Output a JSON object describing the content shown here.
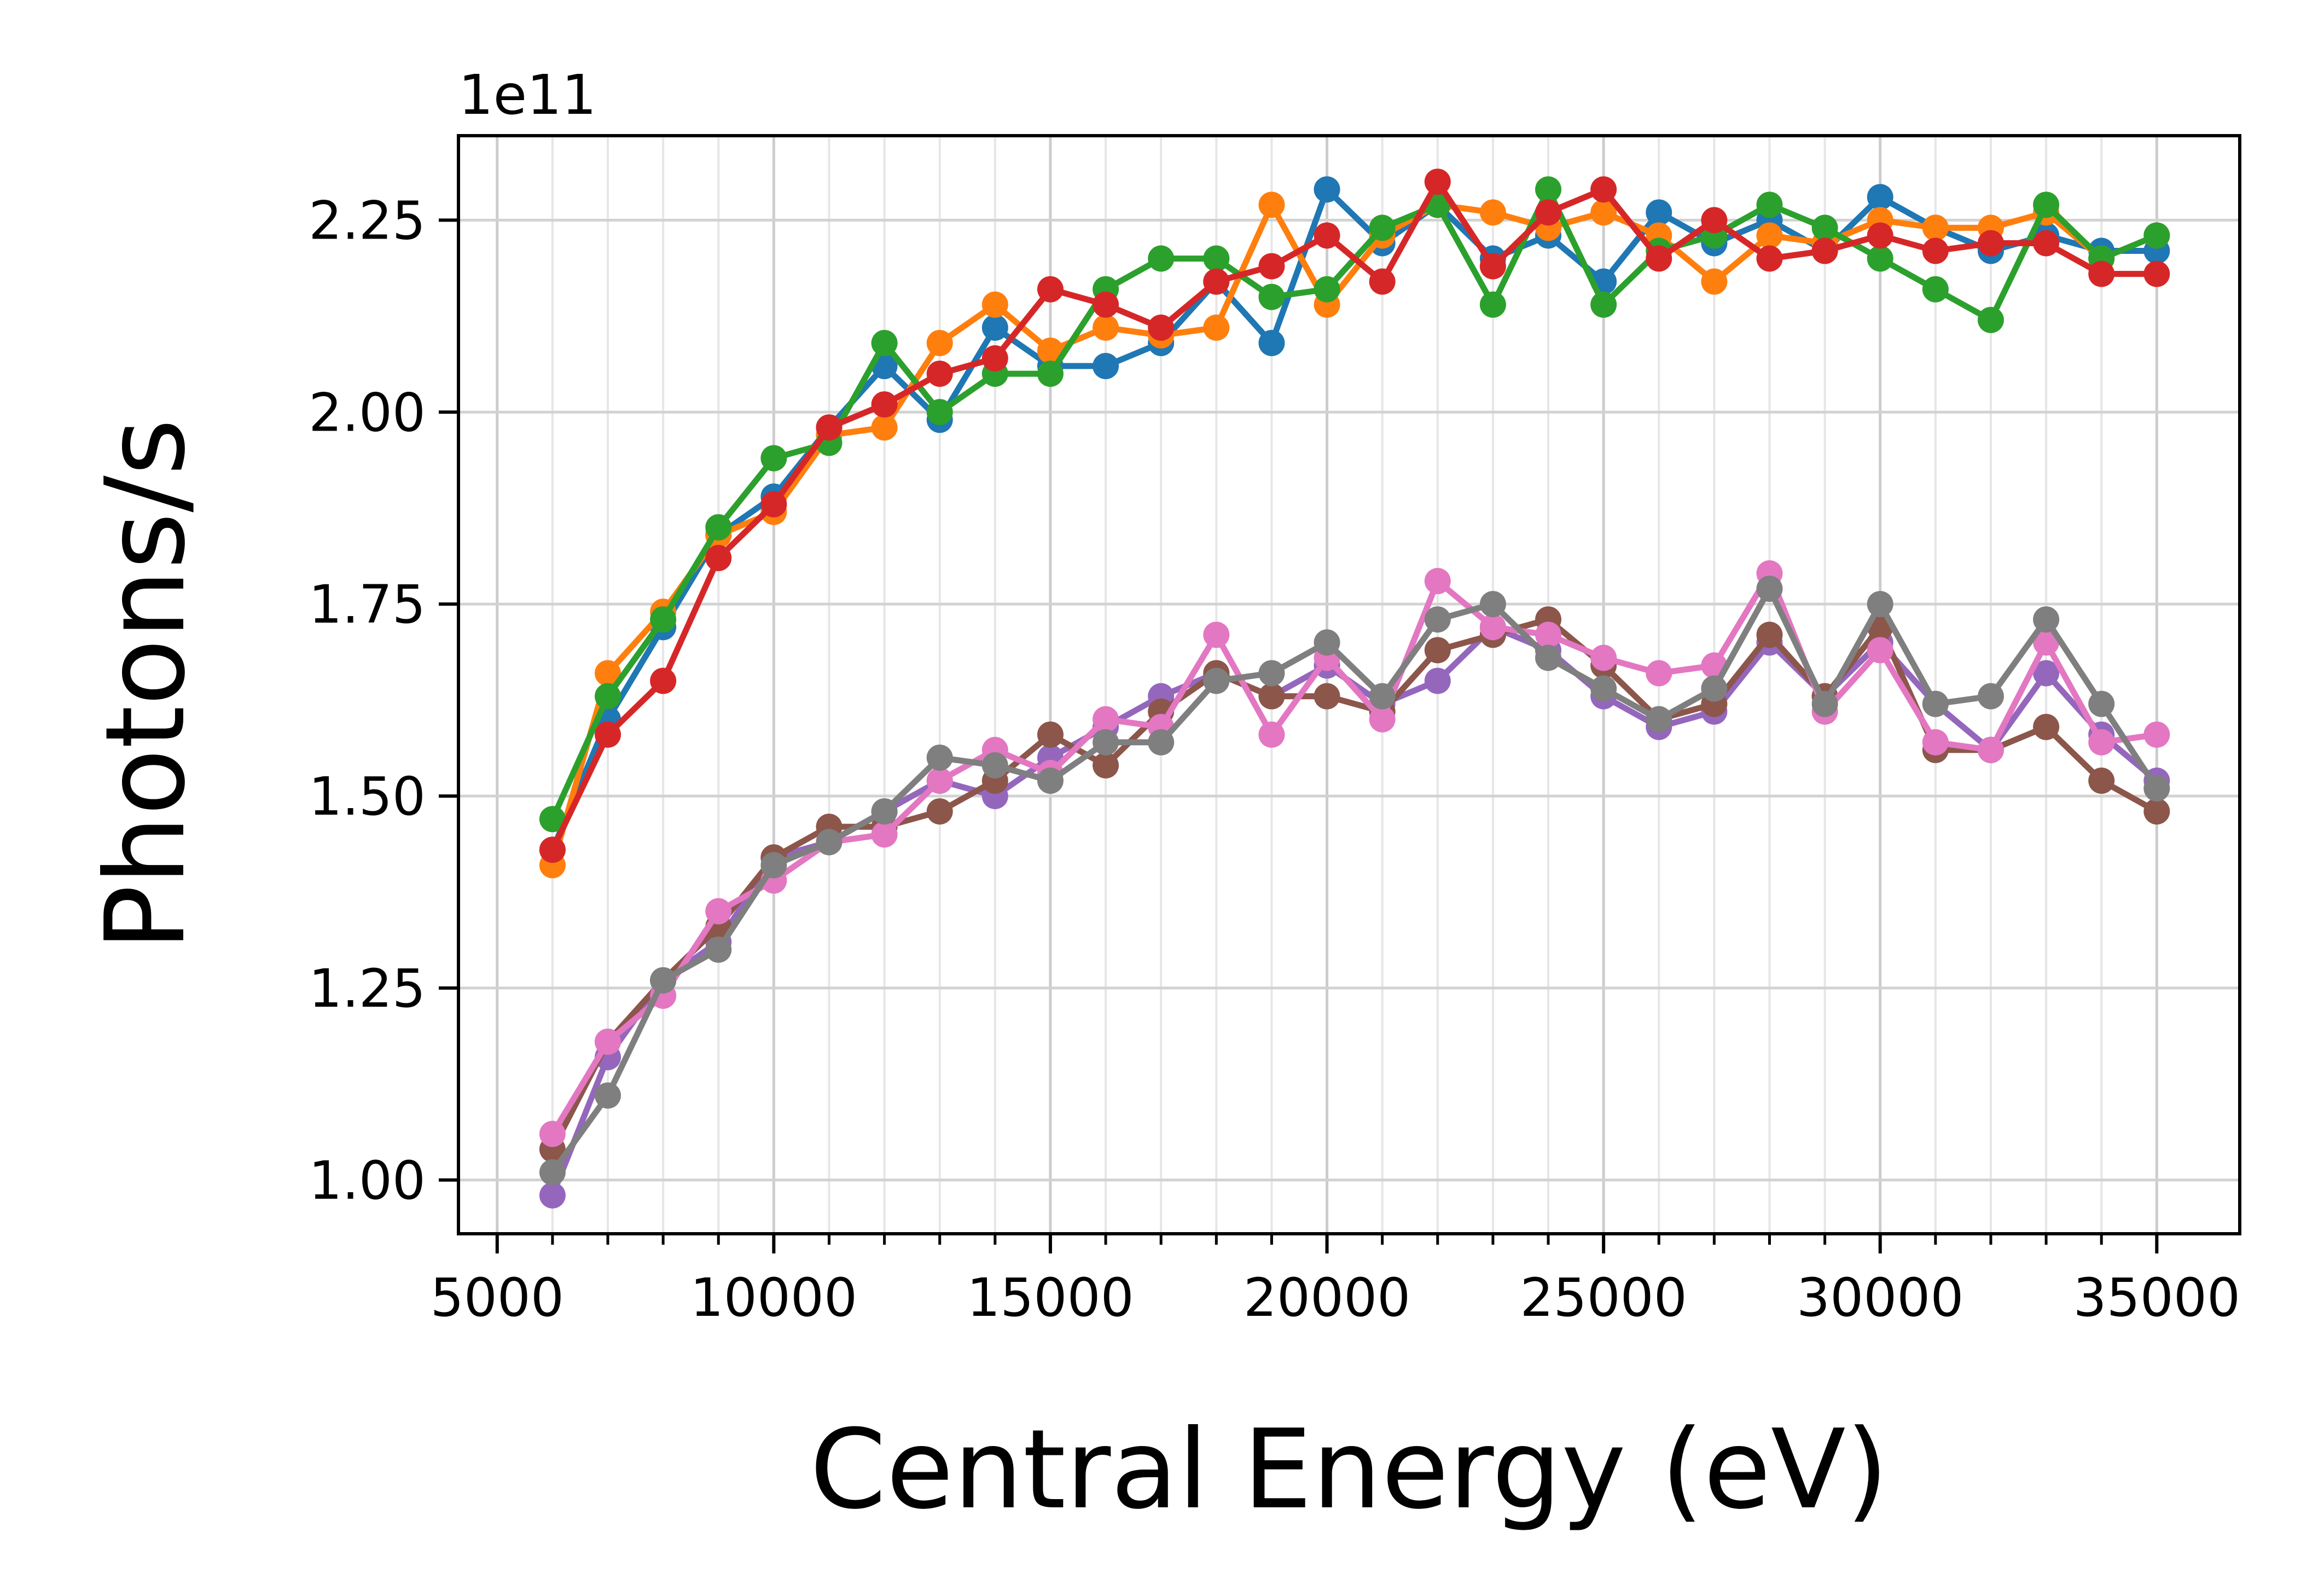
{
  "chart_data": {
    "type": "line",
    "title": "",
    "xlabel": "Central Energy (eV)",
    "ylabel": "Photons/s",
    "y_offset_label": "1e11",
    "y_scale": 100000000000.0,
    "xlim": [
      4300,
      36500
    ],
    "ylim": [
      0.93,
      2.36
    ],
    "x_major_ticks": [
      5000,
      10000,
      15000,
      20000,
      25000,
      30000,
      35000
    ],
    "x_major_tick_labels": [
      "5000",
      "10000",
      "15000",
      "20000",
      "25000",
      "30000",
      "35000"
    ],
    "x_minor_ticks": [
      6000,
      7000,
      8000,
      9000,
      11000,
      12000,
      13000,
      14000,
      16000,
      17000,
      18000,
      19000,
      21000,
      22000,
      23000,
      24000,
      26000,
      27000,
      28000,
      29000,
      31000,
      32000,
      33000,
      34000
    ],
    "y_ticks": [
      1.0,
      1.25,
      1.5,
      1.75,
      2.0,
      2.25
    ],
    "y_tick_labels": [
      "1.00",
      "1.25",
      "1.50",
      "1.75",
      "2.00",
      "2.25"
    ],
    "grid": true,
    "x": [
      6000,
      7000,
      8000,
      9000,
      10000,
      11000,
      12000,
      13000,
      14000,
      15000,
      16000,
      17000,
      18000,
      19000,
      20000,
      21000,
      22000,
      23000,
      24000,
      25000,
      26000,
      27000,
      28000,
      29000,
      30000,
      31000,
      32000,
      33000,
      34000,
      35000
    ],
    "series": [
      {
        "color": "#1f77b4",
        "values": [
          1.43,
          1.6,
          1.72,
          1.84,
          1.89,
          1.98,
          2.06,
          1.99,
          2.11,
          2.06,
          2.06,
          2.09,
          2.17,
          2.09,
          2.29,
          2.22,
          2.27,
          2.2,
          2.23,
          2.17,
          2.26,
          2.22,
          2.25,
          2.21,
          2.28,
          2.24,
          2.21,
          2.23,
          2.21,
          2.21
        ]
      },
      {
        "color": "#ff7f0e",
        "values": [
          1.41,
          1.66,
          1.74,
          1.84,
          1.87,
          1.97,
          1.98,
          2.09,
          2.14,
          2.08,
          2.11,
          2.1,
          2.11,
          2.27,
          2.14,
          2.23,
          2.27,
          2.26,
          2.24,
          2.26,
          2.23,
          2.17,
          2.23,
          2.22,
          2.25,
          2.24,
          2.24,
          2.26,
          2.2,
          2.23
        ]
      },
      {
        "color": "#2ca02c",
        "values": [
          1.47,
          1.63,
          1.73,
          1.85,
          1.94,
          1.96,
          2.09,
          2.0,
          2.05,
          2.05,
          2.16,
          2.2,
          2.2,
          2.15,
          2.16,
          2.24,
          2.27,
          2.14,
          2.29,
          2.14,
          2.21,
          2.23,
          2.27,
          2.24,
          2.2,
          2.16,
          2.12,
          2.27,
          2.2,
          2.23
        ]
      },
      {
        "color": "#d62728",
        "values": [
          1.43,
          1.58,
          1.65,
          1.81,
          1.88,
          1.98,
          2.01,
          2.05,
          2.07,
          2.16,
          2.14,
          2.11,
          2.17,
          2.19,
          2.23,
          2.17,
          2.3,
          2.19,
          2.26,
          2.29,
          2.2,
          2.25,
          2.2,
          2.21,
          2.23,
          2.21,
          2.22,
          2.22,
          2.18,
          2.18
        ]
      },
      {
        "color": "#9467bd",
        "values": [
          0.98,
          1.16,
          1.26,
          1.31,
          1.42,
          1.44,
          1.48,
          1.52,
          1.5,
          1.55,
          1.59,
          1.63,
          1.66,
          1.63,
          1.67,
          1.62,
          1.65,
          1.72,
          1.69,
          1.63,
          1.59,
          1.61,
          1.7,
          1.63,
          1.7,
          1.62,
          1.56,
          1.66,
          1.58,
          1.52
        ]
      },
      {
        "color": "#8c564b",
        "values": [
          1.04,
          1.18,
          1.26,
          1.33,
          1.42,
          1.46,
          1.46,
          1.48,
          1.52,
          1.58,
          1.54,
          1.61,
          1.66,
          1.63,
          1.63,
          1.61,
          1.69,
          1.71,
          1.73,
          1.67,
          1.6,
          1.62,
          1.71,
          1.63,
          1.72,
          1.56,
          1.56,
          1.59,
          1.52,
          1.48
        ]
      },
      {
        "color": "#e377c2",
        "values": [
          1.06,
          1.18,
          1.24,
          1.35,
          1.39,
          1.44,
          1.45,
          1.52,
          1.56,
          1.53,
          1.6,
          1.59,
          1.71,
          1.58,
          1.68,
          1.6,
          1.78,
          1.72,
          1.71,
          1.68,
          1.66,
          1.67,
          1.79,
          1.61,
          1.69,
          1.57,
          1.56,
          1.7,
          1.57,
          1.58
        ]
      },
      {
        "color": "#7f7f7f",
        "values": [
          1.01,
          1.11,
          1.26,
          1.3,
          1.41,
          1.44,
          1.48,
          1.55,
          1.54,
          1.52,
          1.57,
          1.57,
          1.65,
          1.66,
          1.7,
          1.63,
          1.73,
          1.75,
          1.68,
          1.64,
          1.6,
          1.64,
          1.77,
          1.62,
          1.75,
          1.62,
          1.63,
          1.73,
          1.62,
          1.51
        ]
      }
    ]
  }
}
